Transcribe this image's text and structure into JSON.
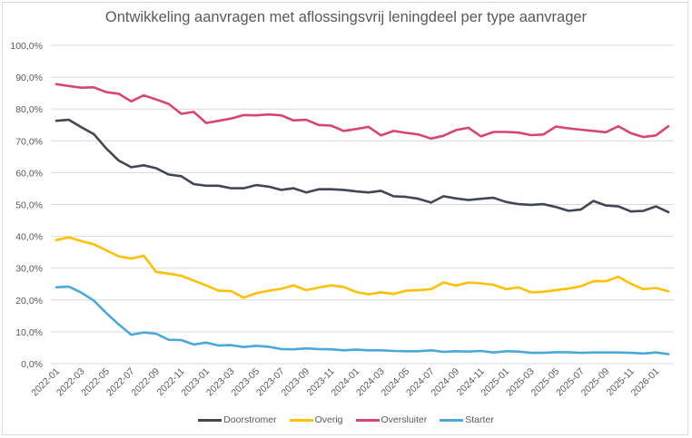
{
  "chart_data": {
    "type": "line",
    "title": "Ontwikkeling aanvragen met aflossingsvrij leningdeel per type aanvrager",
    "xlabel": "",
    "ylabel": "",
    "ylim": [
      0,
      100
    ],
    "y_ticks": [
      "0,0%",
      "10,0%",
      "20,0%",
      "30,0%",
      "40,0%",
      "50,0%",
      "60,0%",
      "70,0%",
      "80,0%",
      "90,0%",
      "100,0%"
    ],
    "y_tick_values": [
      0,
      10,
      20,
      30,
      40,
      50,
      60,
      70,
      80,
      90,
      100
    ],
    "grid": true,
    "legend_position": "bottom",
    "x": [
      "2022-01",
      "2022-02",
      "2022-03",
      "2022-04",
      "2022-05",
      "2022-06",
      "2022-07",
      "2022-08",
      "2022-09",
      "2022-10",
      "2022-11",
      "2022-12",
      "2023-01",
      "2023-02",
      "2023-03",
      "2023-04",
      "2023-05",
      "2023-06",
      "2023-07",
      "2023-08",
      "2023-09",
      "2023-10",
      "2023-11",
      "2023-12",
      "2024-01",
      "2024-02",
      "2024-03",
      "2024-04",
      "2024-05",
      "2024-06",
      "2024-07",
      "2024-08",
      "2024-09",
      "2024-10",
      "2024-11",
      "2024-12",
      "2025-01",
      "2025-02",
      "2025-03",
      "2025-04",
      "2025-05",
      "2025-06",
      "2025-07",
      "2025-08",
      "2025-09",
      "2025-10",
      "2025-11",
      "2025-12",
      "2026-01",
      "2026-02"
    ],
    "x_tick_labels": [
      "2022-01",
      "2022-03",
      "2022-05",
      "2022-07",
      "2022-09",
      "2022-11",
      "2023-01",
      "2023-03",
      "2023-05",
      "2023-07",
      "2023-09",
      "2023-11",
      "2024-01",
      "2024-03",
      "2024-05",
      "2024-07",
      "2024-09",
      "2024-11",
      "2025-01",
      "2025-03",
      "2025-05",
      "2025-07",
      "2025-09",
      "2025-11",
      "2026-01"
    ],
    "series": [
      {
        "name": "Doorstromer",
        "color": "#404755",
        "values": [
          76.3,
          76.6,
          74.3,
          72.1,
          67.6,
          63.8,
          61.7,
          62.3,
          61.4,
          59.4,
          58.9,
          56.4,
          55.9,
          55.9,
          55.1,
          55.1,
          56.1,
          55.6,
          54.6,
          55.1,
          53.8,
          54.8,
          54.8,
          54.6,
          54.1,
          53.8,
          54.3,
          52.6,
          52.4,
          51.8,
          50.6,
          52.6,
          51.9,
          51.4,
          51.8,
          52.1,
          50.8,
          50.1,
          49.9,
          50.1,
          49.2,
          48.0,
          48.4,
          51.1,
          49.7,
          49.4,
          47.8,
          48.0,
          49.4,
          47.6
        ]
      },
      {
        "name": "Overig",
        "color": "#FFC000",
        "values": [
          38.8,
          39.7,
          38.5,
          37.5,
          35.6,
          33.7,
          33.0,
          33.9,
          28.8,
          28.3,
          27.6,
          26.1,
          24.6,
          22.9,
          22.8,
          20.7,
          22.1,
          22.9,
          23.5,
          24.6,
          23.1,
          23.9,
          24.6,
          24.1,
          22.5,
          21.8,
          22.4,
          21.9,
          22.9,
          23.1,
          23.4,
          25.5,
          24.5,
          25.5,
          25.2,
          24.8,
          23.4,
          24.0,
          22.4,
          22.6,
          23.1,
          23.6,
          24.3,
          25.9,
          25.9,
          27.3,
          25.1,
          23.4,
          23.8,
          22.7
        ]
      },
      {
        "name": "Oversluiter",
        "color": "#D9456F",
        "values": [
          87.8,
          87.2,
          86.7,
          86.8,
          85.3,
          84.8,
          82.4,
          84.3,
          83.0,
          81.6,
          78.5,
          79.1,
          75.6,
          76.3,
          77.0,
          78.1,
          78.0,
          78.3,
          78.0,
          76.4,
          76.6,
          75.0,
          74.8,
          73.1,
          73.7,
          74.4,
          71.7,
          73.1,
          72.5,
          72.0,
          70.7,
          71.6,
          73.4,
          74.1,
          71.4,
          72.8,
          72.8,
          72.6,
          71.8,
          72.0,
          74.5,
          73.9,
          73.5,
          73.1,
          72.7,
          74.6,
          72.4,
          71.2,
          71.7,
          74.6
        ]
      },
      {
        "name": "Starter",
        "color": "#4BA8DA",
        "values": [
          24.0,
          24.2,
          22.3,
          19.8,
          15.9,
          12.3,
          9.1,
          9.8,
          9.4,
          7.5,
          7.4,
          6.0,
          6.6,
          5.7,
          5.8,
          5.2,
          5.6,
          5.3,
          4.6,
          4.5,
          4.8,
          4.6,
          4.5,
          4.2,
          4.4,
          4.2,
          4.2,
          4.0,
          3.9,
          3.9,
          4.2,
          3.7,
          3.9,
          3.8,
          4.0,
          3.5,
          3.9,
          3.8,
          3.4,
          3.4,
          3.6,
          3.6,
          3.4,
          3.5,
          3.5,
          3.5,
          3.4,
          3.2,
          3.5,
          3.0
        ]
      }
    ]
  }
}
